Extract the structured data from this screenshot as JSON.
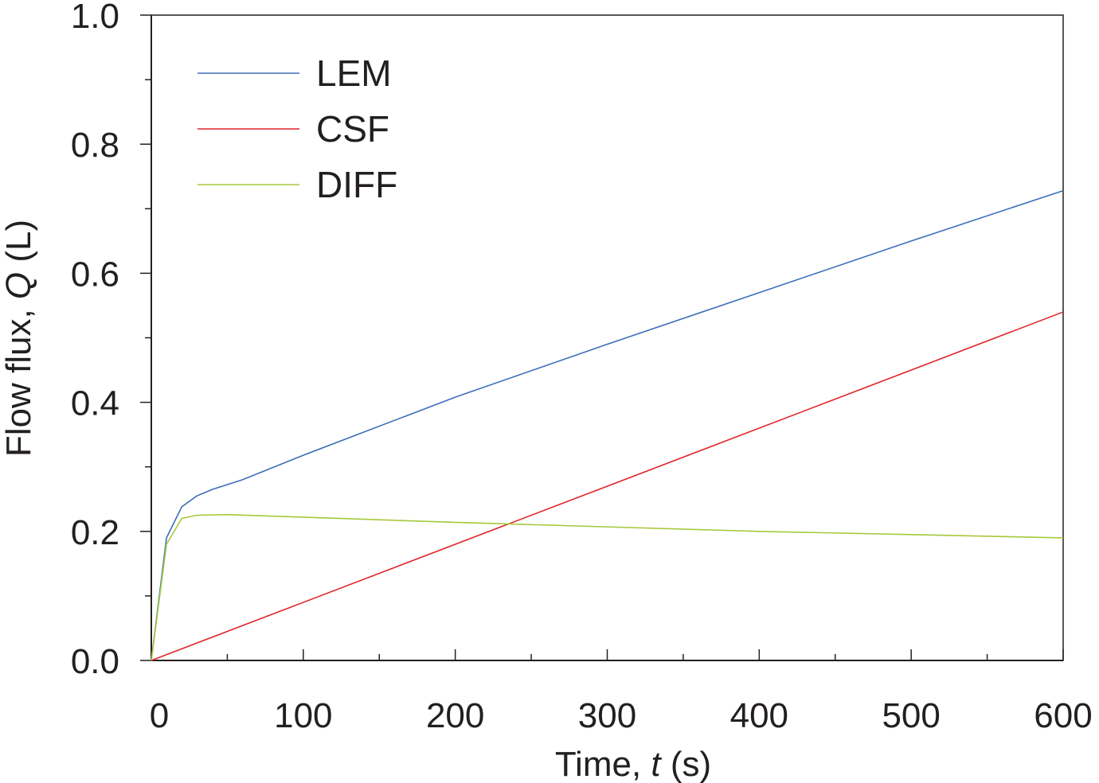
{
  "chart_data": {
    "type": "line",
    "xlabel": {
      "prefix": "Time, ",
      "var": "t",
      "suffix": " (s)"
    },
    "ylabel": {
      "prefix": "Flow flux, ",
      "var": "Q",
      "suffix": " (L)"
    },
    "xlim": [
      0,
      600
    ],
    "ylim": [
      0,
      1.0
    ],
    "x_ticks": [
      "0",
      "100",
      "200",
      "300",
      "400",
      "500",
      "600"
    ],
    "y_ticks": [
      "0.0",
      "0.2",
      "0.4",
      "0.6",
      "0.8",
      "1.0"
    ],
    "grid": false,
    "legend_position": "top-left",
    "series": [
      {
        "name": "LEM",
        "color": "#3b6fb6",
        "x": [
          0,
          10,
          20,
          30,
          40,
          60,
          100,
          200,
          300,
          400,
          500,
          600
        ],
        "y": [
          0,
          0.19,
          0.238,
          0.255,
          0.265,
          0.28,
          0.318,
          0.408,
          0.49,
          0.57,
          0.65,
          0.728
        ]
      },
      {
        "name": "CSF",
        "color": "#e0262b",
        "x": [
          0,
          600
        ],
        "y": [
          0,
          0.54
        ]
      },
      {
        "name": "DIFF",
        "color": "#a6c83c",
        "x": [
          0,
          10,
          20,
          30,
          50,
          100,
          200,
          300,
          400,
          500,
          600
        ],
        "y": [
          0,
          0.18,
          0.22,
          0.225,
          0.226,
          0.222,
          0.214,
          0.207,
          0.2,
          0.195,
          0.19
        ]
      }
    ]
  }
}
